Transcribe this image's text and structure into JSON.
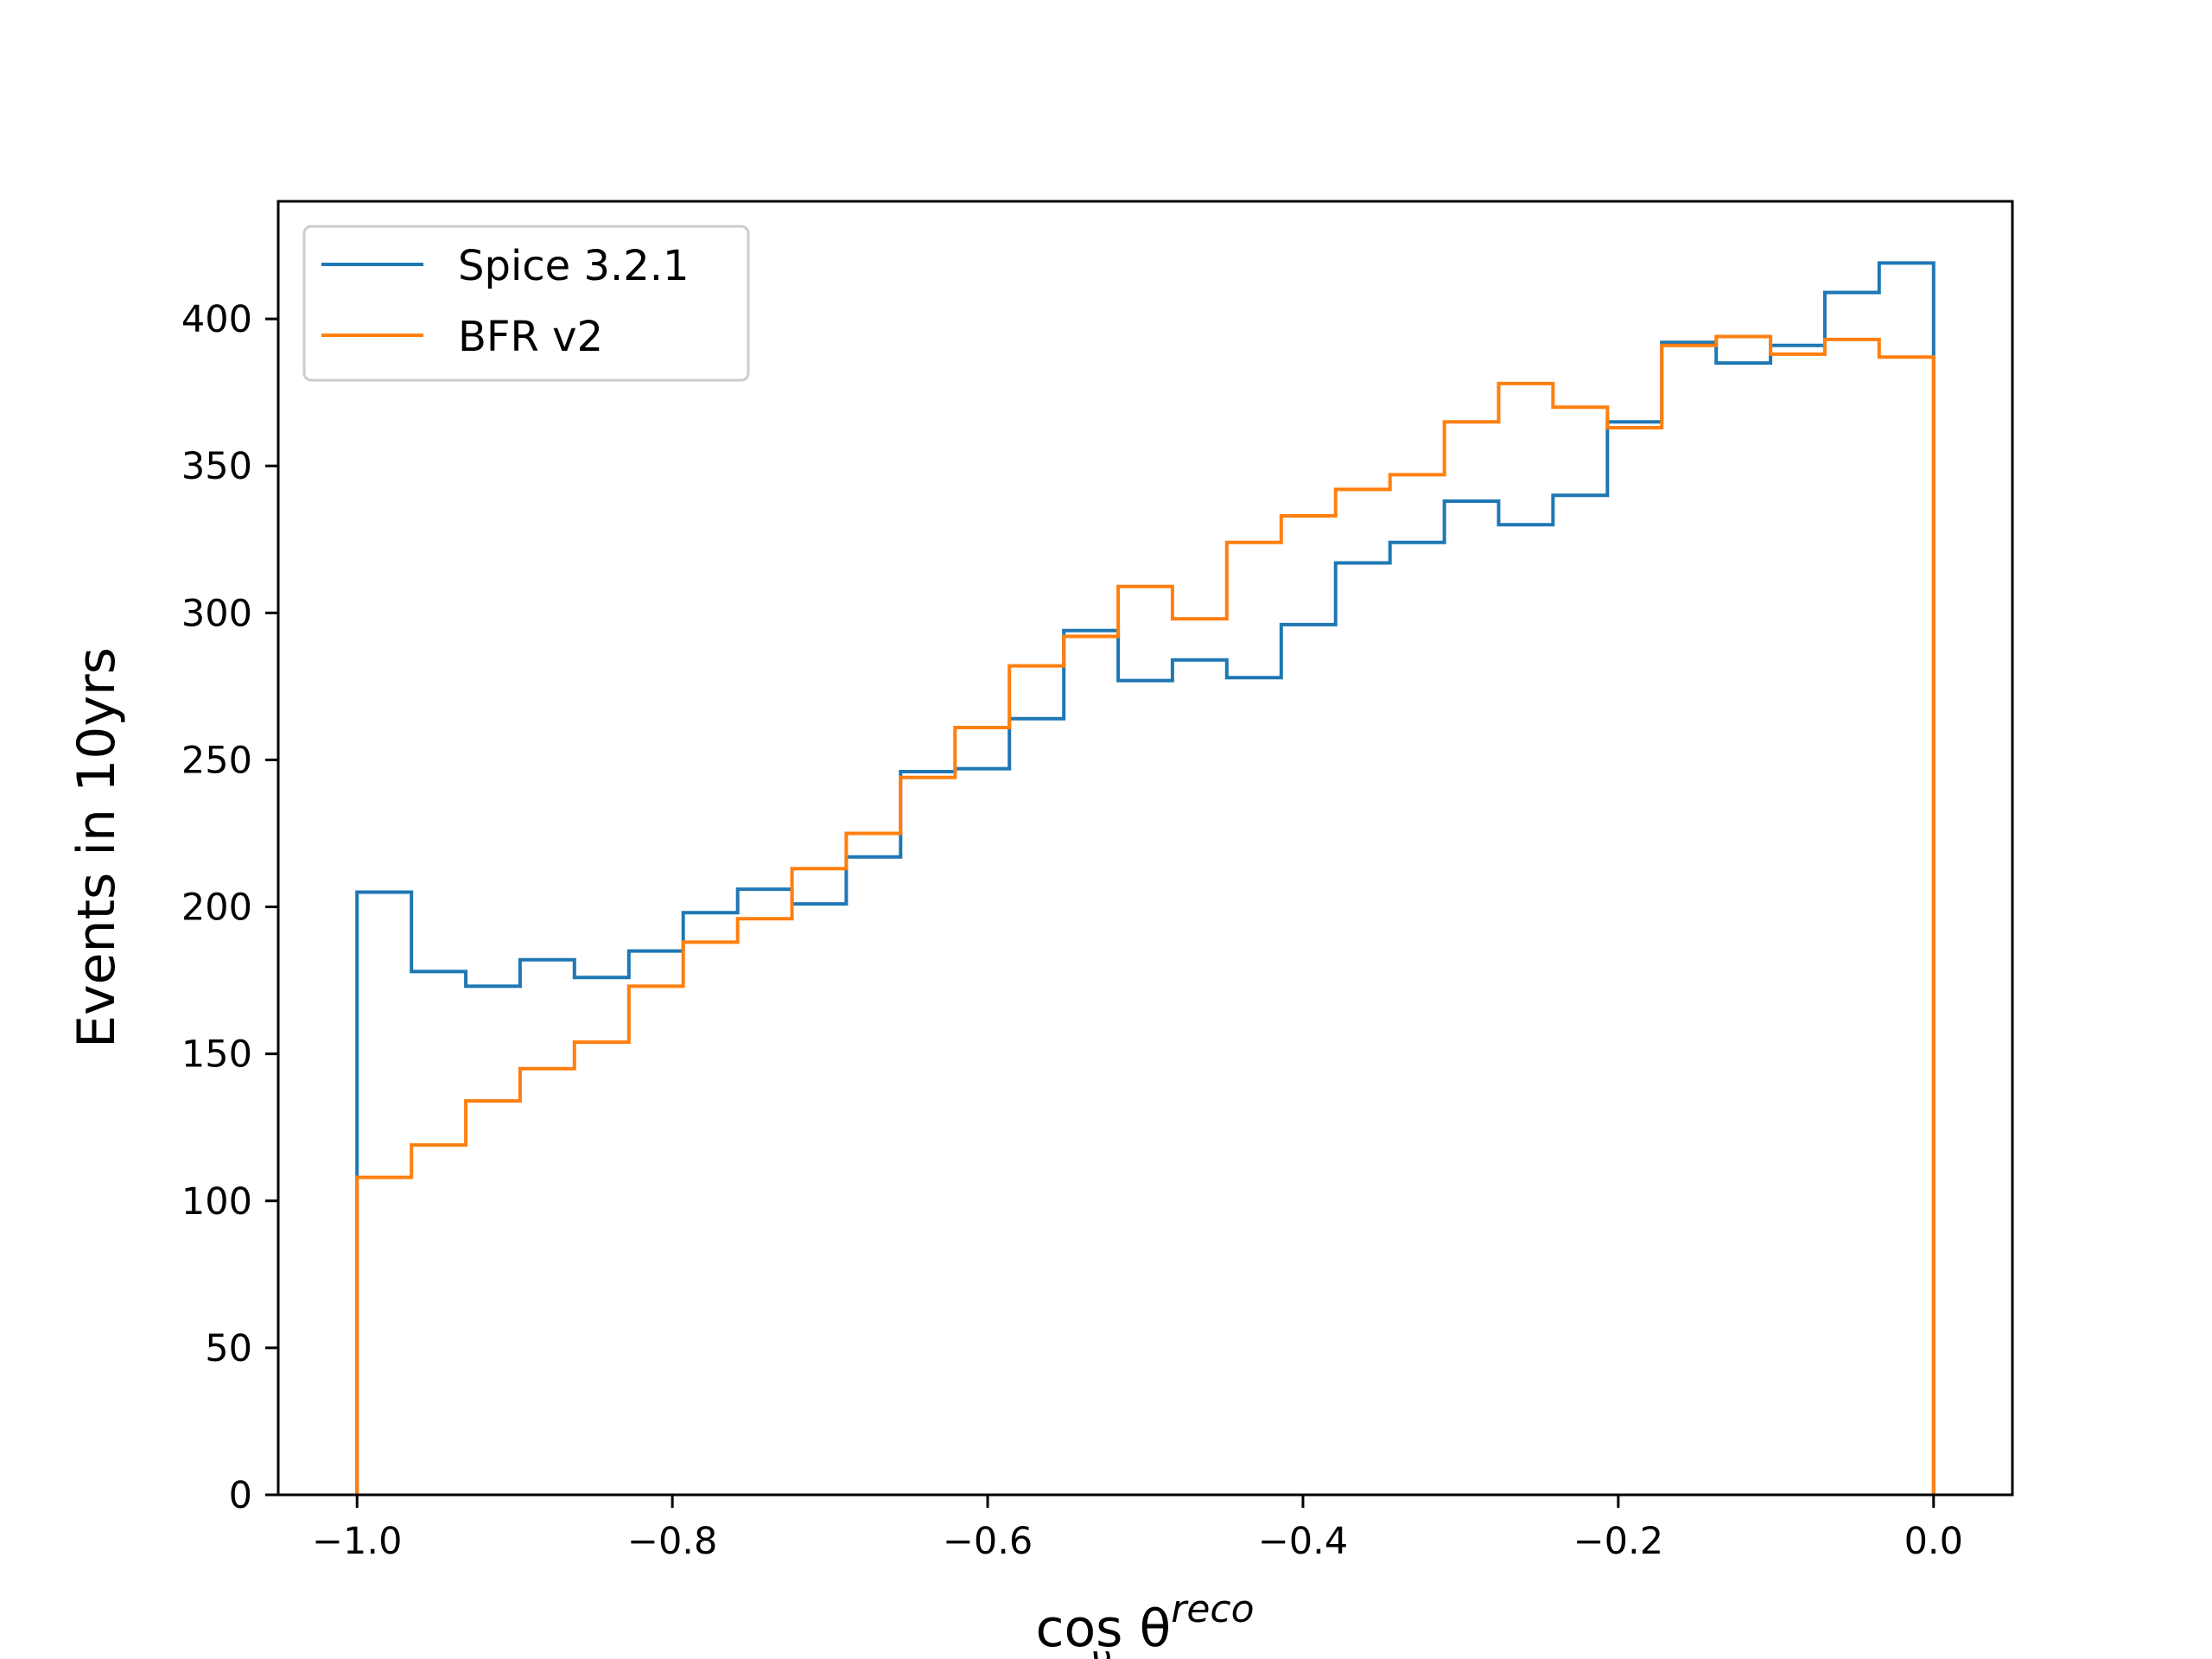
{
  "chart_data": {
    "type": "histogram-step",
    "xlabel": "cos θ_ν^reco",
    "xlabel_parts": {
      "base": "cos θ",
      "subscript": "ν",
      "superscript": "reco"
    },
    "ylabel": "Events in 10yrs",
    "xlim": [
      -1.05,
      0.05
    ],
    "ylim": [
      0,
      440
    ],
    "xticks": [
      -1.0,
      -0.8,
      -0.6,
      -0.4,
      -0.2,
      0.0
    ],
    "xtick_labels": [
      "−1.0",
      "−0.8",
      "−0.6",
      "−0.4",
      "−0.2",
      "0.0"
    ],
    "yticks": [
      0,
      50,
      100,
      150,
      200,
      250,
      300,
      350,
      400
    ],
    "ytick_labels": [
      "0",
      "50",
      "100",
      "150",
      "200",
      "250",
      "300",
      "350",
      "400"
    ],
    "grid": false,
    "legend_position": "top-left",
    "bin_edges": [
      -1.0,
      -0.9655,
      -0.931,
      -0.8966,
      -0.8621,
      -0.8276,
      -0.7931,
      -0.7586,
      -0.7241,
      -0.6897,
      -0.6552,
      -0.6207,
      -0.5862,
      -0.5517,
      -0.5172,
      -0.4828,
      -0.4483,
      -0.4138,
      -0.3793,
      -0.3448,
      -0.3103,
      -0.2759,
      -0.2414,
      -0.2069,
      -0.1724,
      -0.1379,
      -0.1034,
      -0.069,
      -0.0345,
      0.0
    ],
    "series": [
      {
        "name": "Spice 3.2.1",
        "color": "#1f77b4",
        "values": [
          205,
          178,
          173,
          182,
          176,
          185,
          198,
          206,
          201,
          217,
          246,
          247,
          264,
          294,
          277,
          284,
          278,
          296,
          317,
          324,
          338,
          330,
          340,
          365,
          392,
          385,
          391,
          409,
          419
        ]
      },
      {
        "name": "BFR v2",
        "color": "#ff7f0e",
        "values": [
          108,
          119,
          134,
          145,
          154,
          173,
          188,
          196,
          213,
          225,
          244,
          261,
          282,
          292,
          309,
          298,
          324,
          333,
          342,
          347,
          365,
          378,
          370,
          363,
          391,
          394,
          388,
          393,
          387
        ]
      }
    ]
  }
}
